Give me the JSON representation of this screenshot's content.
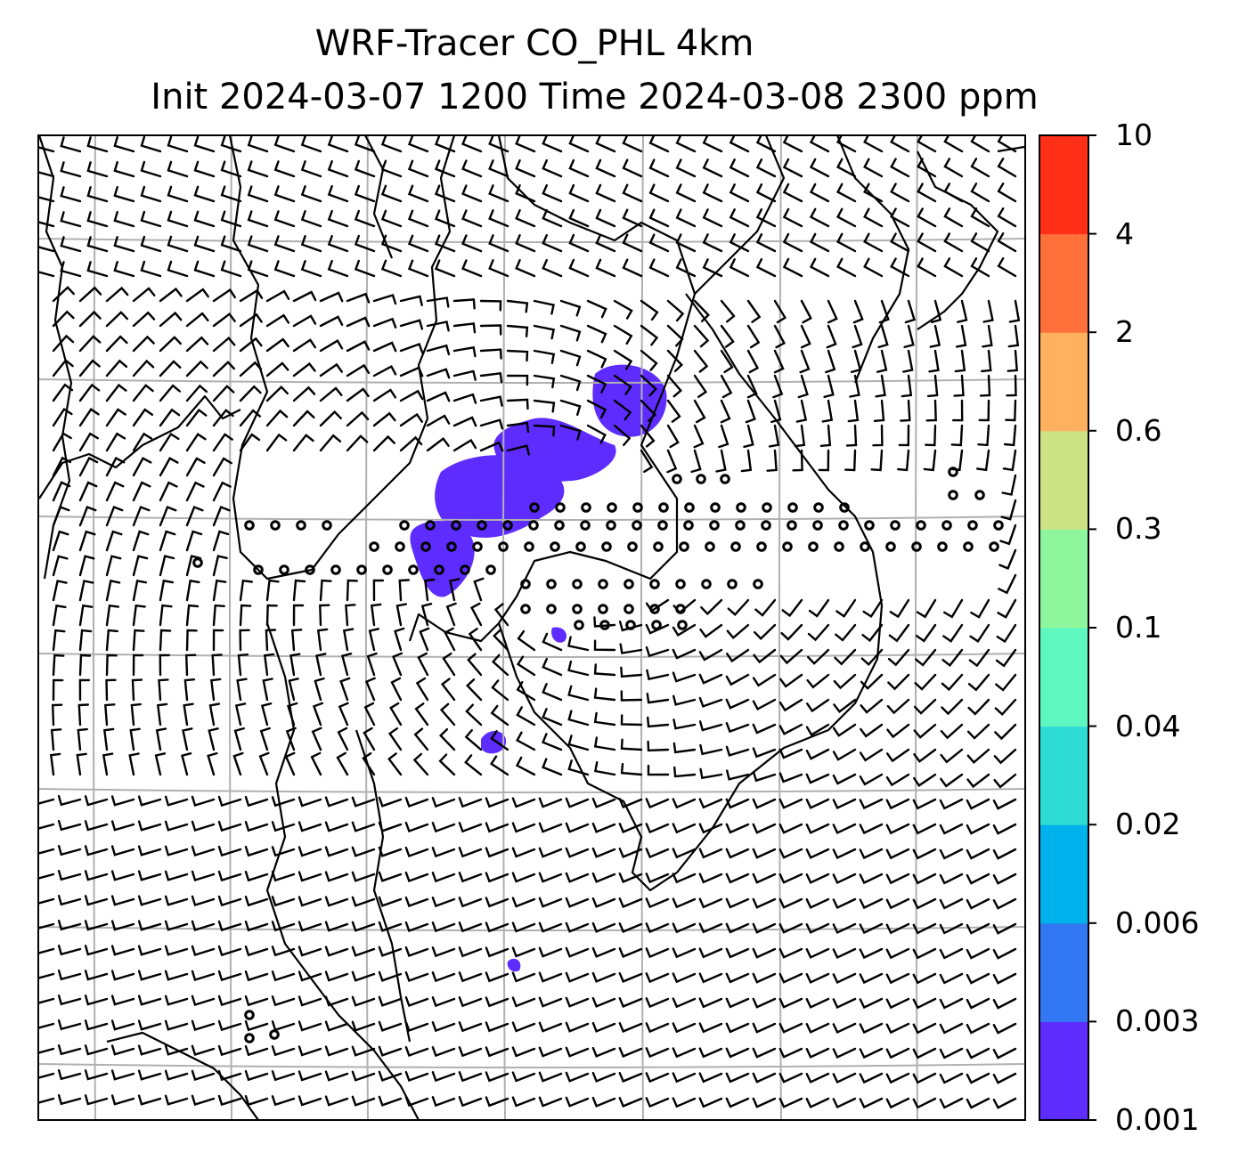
{
  "title": {
    "line1": "WRF-Tracer CO_PHL 4km",
    "line2": "Init 2024-03-07 1200 Time 2024-03-08 2300 ppm"
  },
  "colorbar": {
    "levels": [
      "0.001",
      "0.003",
      "0.006",
      "0.02",
      "0.04",
      "0.1",
      "0.3",
      "0.6",
      "2",
      "4",
      "10"
    ],
    "colors": [
      "#5e2cff",
      "#3278f3",
      "#00b2ec",
      "#2ddcd4",
      "#5ff7c1",
      "#8ef79d",
      "#cde283",
      "#ffb15f",
      "#ff703b",
      "#ff2e17"
    ]
  },
  "map": {
    "plume_color": "#5e2cff",
    "line_color": "#000000",
    "grid_color": "#b0b0b0",
    "gridlines": {
      "lon_count": 7,
      "lat_count": 7
    }
  }
}
